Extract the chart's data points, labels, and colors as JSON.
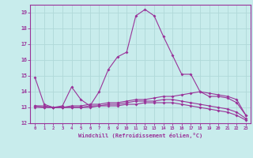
{
  "xlabel": "Windchill (Refroidissement éolien,°C)",
  "xlim": [
    -0.5,
    23.5
  ],
  "ylim": [
    12,
    19.5
  ],
  "yticks": [
    12,
    13,
    14,
    15,
    16,
    17,
    18,
    19
  ],
  "xticks": [
    0,
    1,
    2,
    3,
    4,
    5,
    6,
    7,
    8,
    9,
    10,
    11,
    12,
    13,
    14,
    15,
    16,
    17,
    18,
    19,
    20,
    21,
    22,
    23
  ],
  "background_color": "#c8ecec",
  "grid_color": "#b0d8d8",
  "line_color": "#993399",
  "series1": {
    "x": [
      0,
      1,
      2,
      3,
      4,
      5,
      6,
      7,
      8,
      9,
      10,
      11,
      12,
      13,
      14,
      15,
      16,
      17,
      18,
      19,
      20,
      21,
      22,
      23
    ],
    "y": [
      14.9,
      13.2,
      13.0,
      13.1,
      14.3,
      13.5,
      13.1,
      14.0,
      15.4,
      16.2,
      16.5,
      18.8,
      19.2,
      18.8,
      17.5,
      16.3,
      15.1,
      15.1,
      14.0,
      13.7,
      13.7,
      13.6,
      13.3,
      12.5
    ]
  },
  "series2": {
    "x": [
      0,
      1,
      2,
      3,
      4,
      5,
      6,
      7,
      8,
      9,
      10,
      11,
      12,
      13,
      14,
      15,
      16,
      17,
      18,
      19,
      20,
      21,
      22,
      23
    ],
    "y": [
      13.1,
      13.1,
      13.0,
      13.0,
      13.1,
      13.1,
      13.2,
      13.2,
      13.3,
      13.3,
      13.4,
      13.5,
      13.5,
      13.6,
      13.7,
      13.7,
      13.8,
      13.9,
      14.0,
      13.9,
      13.8,
      13.7,
      13.5,
      12.5
    ]
  },
  "series3": {
    "x": [
      0,
      1,
      2,
      3,
      4,
      5,
      6,
      7,
      8,
      9,
      10,
      11,
      12,
      13,
      14,
      15,
      16,
      17,
      18,
      19,
      20,
      21,
      22,
      23
    ],
    "y": [
      13.1,
      13.0,
      13.0,
      13.0,
      13.0,
      13.0,
      13.1,
      13.1,
      13.2,
      13.2,
      13.3,
      13.4,
      13.4,
      13.4,
      13.5,
      13.5,
      13.4,
      13.3,
      13.2,
      13.1,
      13.0,
      12.9,
      12.7,
      12.3
    ]
  },
  "series4": {
    "x": [
      0,
      1,
      2,
      3,
      4,
      5,
      6,
      7,
      8,
      9,
      10,
      11,
      12,
      13,
      14,
      15,
      16,
      17,
      18,
      19,
      20,
      21,
      22,
      23
    ],
    "y": [
      13.0,
      13.0,
      13.0,
      13.0,
      13.0,
      13.0,
      13.0,
      13.1,
      13.1,
      13.1,
      13.2,
      13.2,
      13.3,
      13.3,
      13.3,
      13.3,
      13.2,
      13.1,
      13.0,
      12.9,
      12.8,
      12.7,
      12.5,
      12.2
    ]
  }
}
